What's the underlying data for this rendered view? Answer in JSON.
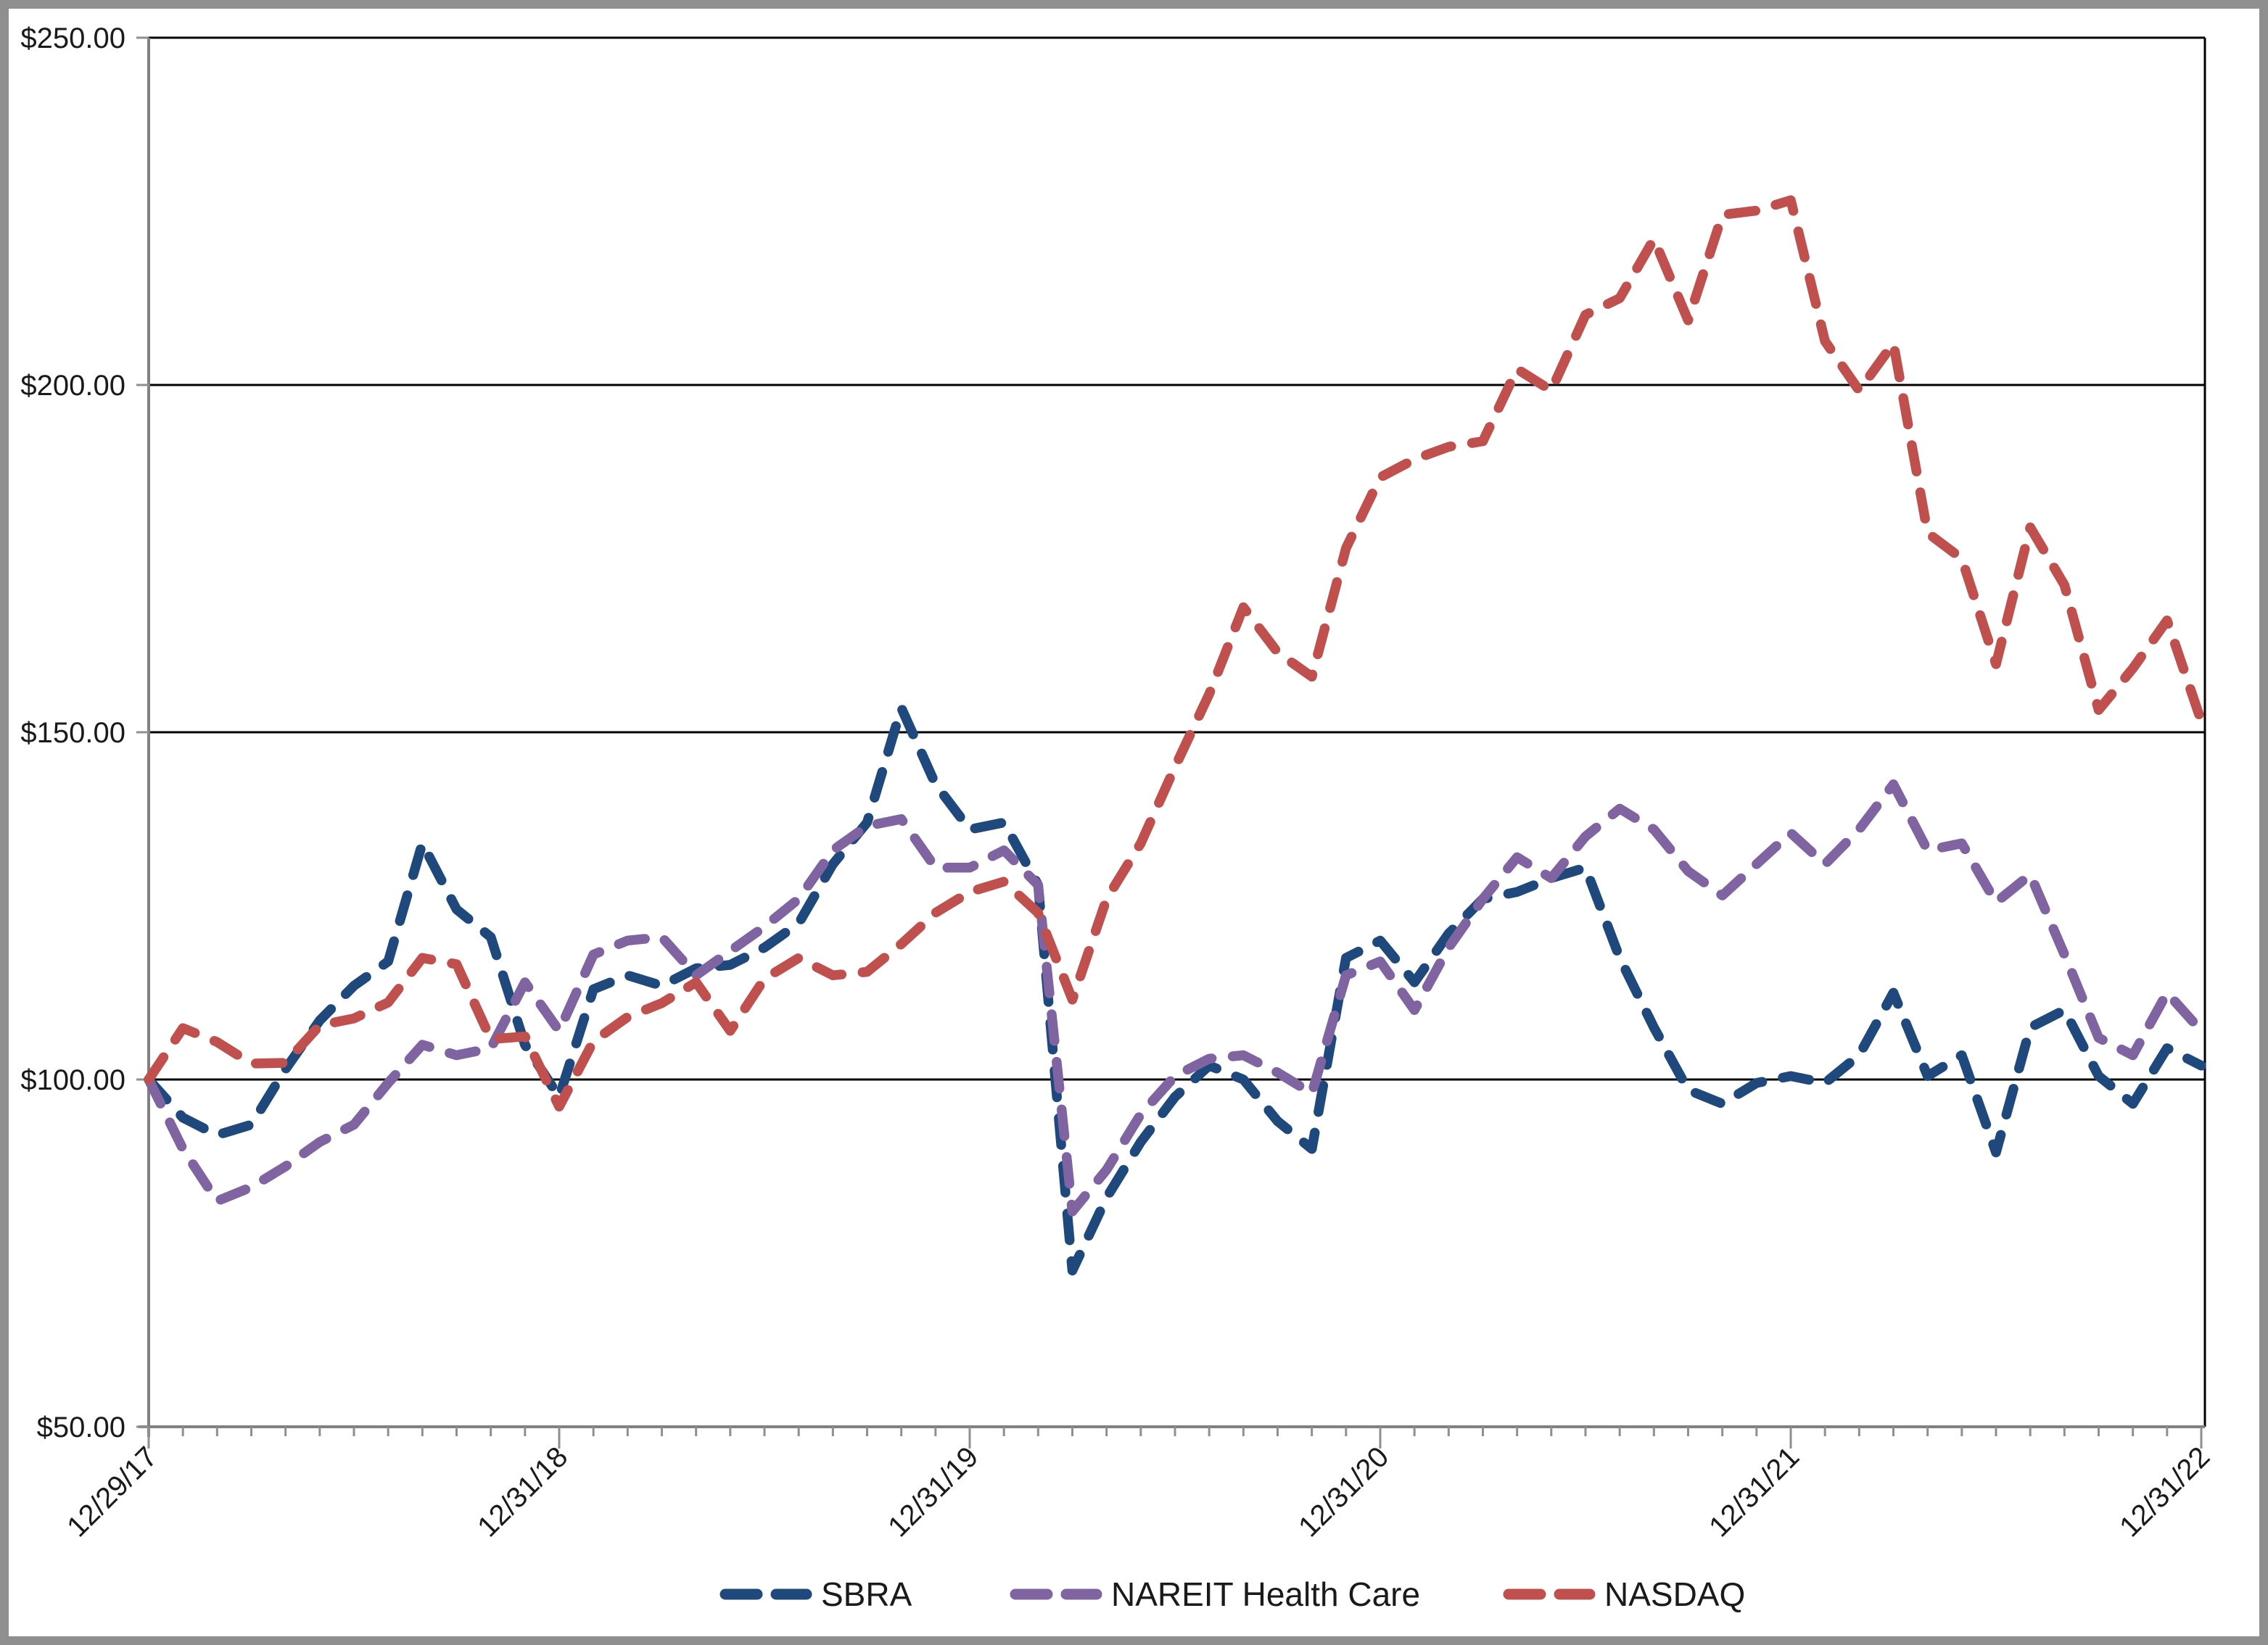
{
  "chart_data": {
    "type": "line",
    "title": "",
    "xlabel": "",
    "ylabel": "",
    "ylim": [
      50,
      250
    ],
    "grid_values": [
      250,
      200,
      150,
      100,
      50
    ],
    "y_tick_labels": [
      "$250.00",
      "$200.00",
      "$150.00",
      "$100.00",
      "$50.00"
    ],
    "x_tick_labels": [
      "12/29/17",
      "12/31/18",
      "12/31/19",
      "12/31/20",
      "12/31/21",
      "12/31/22"
    ],
    "x_tick_month_positions": [
      0,
      12,
      24,
      36,
      48,
      60
    ],
    "months_total": 61,
    "legend_position": "bottom-center",
    "grid_on": true,
    "series": [
      {
        "name": "SBRA",
        "color": "#1F497D",
        "values": [
          100,
          94.5,
          92,
          93.5,
          101.5,
          108.5,
          113.5,
          117,
          134,
          124.5,
          120.5,
          105,
          97.5,
          113,
          115,
          113.5,
          116,
          116.5,
          119,
          122.5,
          131,
          137,
          153.5,
          142.5,
          136,
          137,
          128,
          72.5,
          83,
          91,
          97.5,
          102,
          100,
          94,
          90,
          117.5,
          120,
          114,
          121,
          126,
          127,
          129,
          130.5,
          117.5,
          107.5,
          98.5,
          96.5,
          99.5,
          100.5,
          99.5,
          103.5,
          112.5,
          100.5,
          103.5,
          89.5,
          107.5,
          110,
          100.5,
          96.5,
          104.5,
          102
        ]
      },
      {
        "name": "NAREIT Health Care",
        "color": "#8064A2",
        "values": [
          100,
          90,
          82.5,
          84.5,
          87.5,
          91,
          93.5,
          99.5,
          105,
          103.5,
          104.5,
          114,
          107,
          118,
          120,
          120.5,
          115,
          118.5,
          122,
          126,
          133,
          136.5,
          137.5,
          130.5,
          130.5,
          133,
          128,
          81,
          87,
          95,
          100.5,
          103,
          103.5,
          101,
          98,
          115,
          117,
          110,
          119,
          126,
          132,
          129,
          135,
          139,
          136,
          130,
          126.5,
          131,
          135.5,
          131,
          136,
          142.5,
          133,
          134,
          125.5,
          129.5,
          118,
          106,
          103.5,
          112.5,
          107
        ]
      },
      {
        "name": "NASDAQ",
        "color": "#C0504D",
        "values": [
          100,
          107.4,
          105.4,
          102.3,
          102.4,
          107.8,
          108.8,
          111.1,
          117.5,
          116.6,
          105.8,
          106.2,
          96.1,
          105.5,
          109,
          111,
          114,
          107,
          114.5,
          117.5,
          115,
          115.5,
          119.5,
          124,
          127,
          128.5,
          124,
          111.5,
          126,
          134,
          145,
          155.5,
          168,
          161.5,
          158,
          176.5,
          186.7,
          189.3,
          191.1,
          191.9,
          202.3,
          199.2,
          210.1,
          212.5,
          221,
          209.3,
          224.5,
          225.1,
          226.6,
          206.3,
          199.2,
          206,
          178.7,
          175,
          159.8,
          179.5,
          171.2,
          153.2,
          159.2,
          166.1,
          151.6
        ]
      }
    ],
    "legend": [
      {
        "label": "SBRA",
        "color": "#1F497D"
      },
      {
        "label": "NAREIT Health Care",
        "color": "#8064A2"
      },
      {
        "label": "NASDAQ",
        "color": "#C0504D"
      }
    ]
  },
  "style": {
    "frame_border_color": "#8F8F8F",
    "gridline_color": "#000000",
    "axis_color": "#808080",
    "tick_color": "#8F8F8F",
    "text_color": "#1a1a1a",
    "background": "#FFFFFF"
  }
}
